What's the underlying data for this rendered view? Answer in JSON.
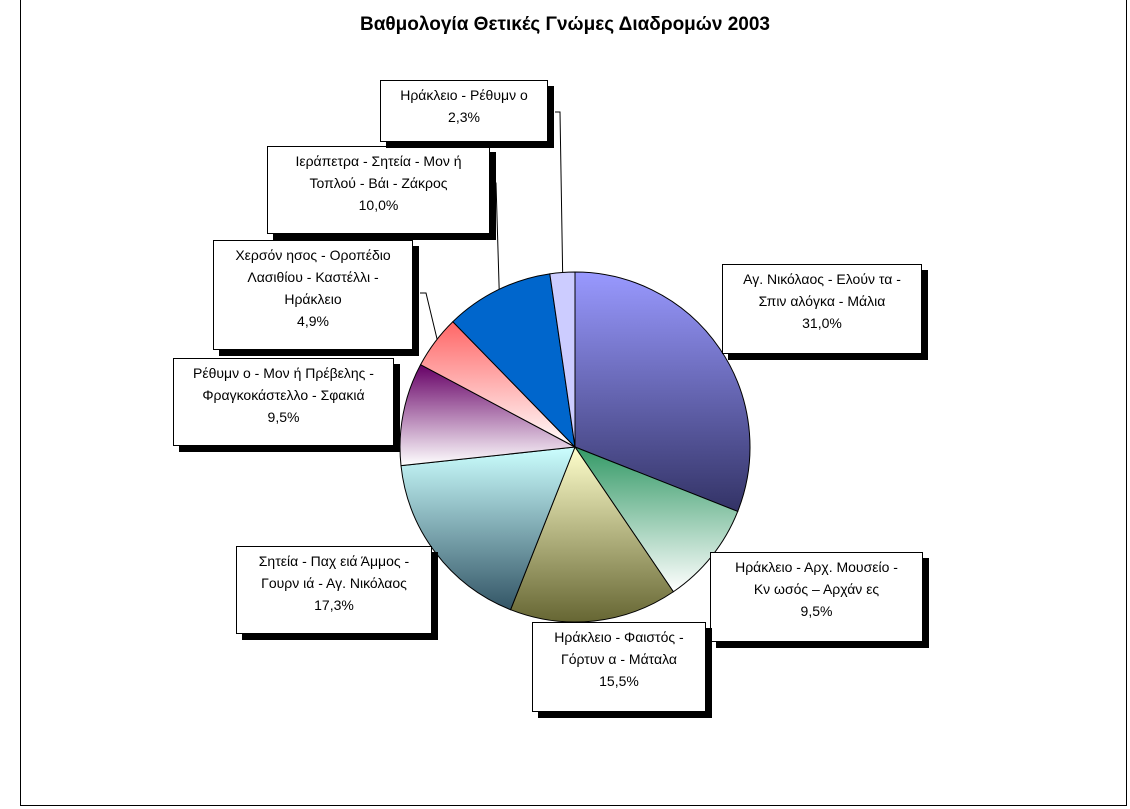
{
  "chart_data": {
    "type": "pie",
    "title": "Βαθμολογία Θετικές Γνώμες Διαδρομών 2003",
    "slices": [
      {
        "lines": [
          "Αγ. Νικόλαος - Ελούν τα -",
          "Σπιν αλόγκα - Μάλια"
        ],
        "pct_label": "31,0%",
        "value": 31.0
      },
      {
        "lines": [
          "Ηράκλειο - Αρχ. Μουσείο -",
          "Κν ωσός – Αρχάν ες"
        ],
        "pct_label": "9,5%",
        "value": 9.5
      },
      {
        "lines": [
          "Ηράκλειο - Φαιστός -",
          "Γόρτυν α - Μάταλα"
        ],
        "pct_label": "15,5%",
        "value": 15.5
      },
      {
        "lines": [
          "Σητεία - Παχ ειά Άμμος -",
          "Γουρν ιά - Αγ. Νικόλαος"
        ],
        "pct_label": "17,3%",
        "value": 17.3
      },
      {
        "lines": [
          "Ρέθυμν ο - Μον ή Πρέβελης -",
          "Φραγκοκάστελλο - Σφακιά"
        ],
        "pct_label": "9,5%",
        "value": 9.5
      },
      {
        "lines": [
          "Χερσόν ησος - Οροπέδιο",
          "Λασιθίου - Καστέλλι -",
          "Ηράκλειο"
        ],
        "pct_label": "4,9%",
        "value": 4.9
      },
      {
        "lines": [
          "Ιεράπετρα - Σητεία - Μον ή",
          "Τοπλού - Βάι - Ζάκρος"
        ],
        "pct_label": "10,0%",
        "value": 10.0
      },
      {
        "lines": [
          "Ηράκλειο - Ρέθυμν ο"
        ],
        "pct_label": "2,3%",
        "value": 2.3
      }
    ],
    "colors": [
      [
        "#9999ff",
        "#333366"
      ],
      [
        "#339966",
        "#ffffff"
      ],
      [
        "#ffffcc",
        "#666633"
      ],
      [
        "#ccffff",
        "#335566"
      ],
      [
        "#660066",
        "#ffffff"
      ],
      [
        "#ff6666",
        "#ffffff"
      ],
      [
        "#0066cc",
        "#0066cc"
      ],
      [
        "#ccccff",
        "#ccccff"
      ]
    ],
    "legend": "none"
  }
}
